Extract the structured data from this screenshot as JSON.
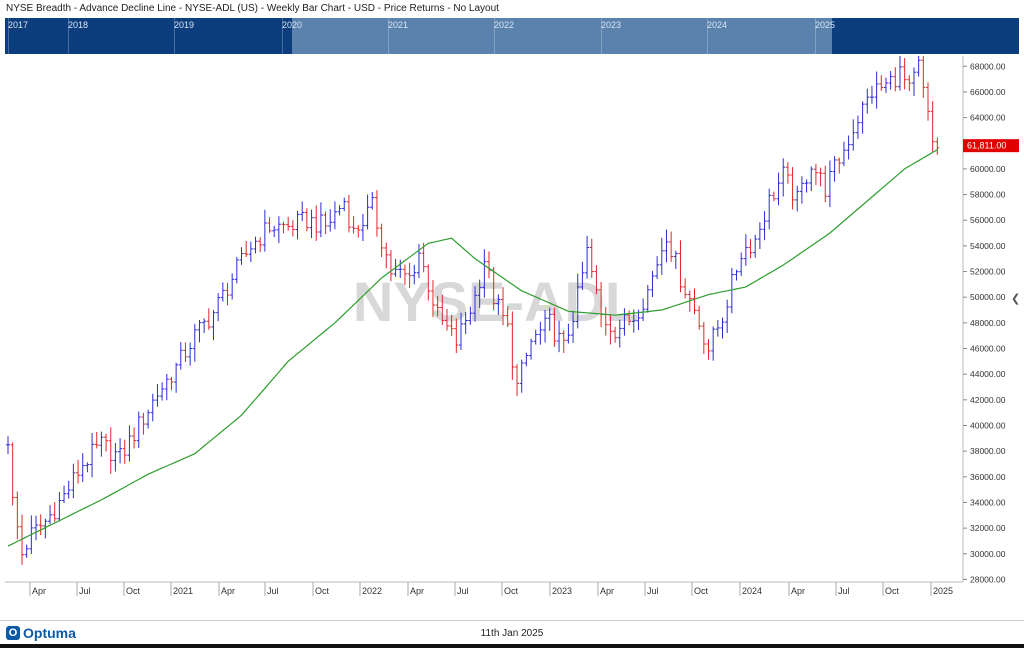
{
  "title": "NYSE Breadth - Advance Decline Line - NYSE-ADL (US) - Weekly Bar Chart - USD - Price Returns - No Layout",
  "watermark": "NYSE-ADL",
  "navigator": {
    "years": [
      "2017",
      "2018",
      "2019",
      "2020",
      "2021",
      "2022",
      "2023",
      "2024",
      "2025"
    ]
  },
  "footer": {
    "logo": "Optuma",
    "date": "11th Jan 2025"
  },
  "colors": {
    "up": "#2b2bd6",
    "down": "#e0262a",
    "ma": "#2e9e2e",
    "navigator": "#0c3d7d",
    "last_price_bg": "#e00000"
  },
  "chart_data": {
    "type": "ohlc-bar",
    "title": "NYSE-ADL",
    "x_tick_labels": [
      "Apr",
      "Jul",
      "Oct",
      "2021",
      "Apr",
      "Jul",
      "Oct",
      "2022",
      "Apr",
      "Jul",
      "Oct",
      "2023",
      "Apr",
      "Jul",
      "Oct",
      "2024",
      "Apr",
      "Jul",
      "Oct",
      "2025"
    ],
    "y_tick_labels": [
      "28000.00",
      "30000.00",
      "32000.00",
      "34000.00",
      "36000.00",
      "38000.00",
      "40000.00",
      "42000.00",
      "44000.00",
      "46000.00",
      "48000.00",
      "50000.00",
      "52000.00",
      "54000.00",
      "56000.00",
      "58000.00",
      "60000.00",
      "62000.00",
      "64000.00",
      "66000.00",
      "68000.00"
    ],
    "ylim": [
      27800,
      68800
    ],
    "last_price": "61,811.00",
    "close_anchors": [
      {
        "week": 0,
        "close": 39000
      },
      {
        "week": 1,
        "close": 34000
      },
      {
        "week": 3,
        "close": 30000
      },
      {
        "week": 5,
        "close": 31500
      },
      {
        "week": 8,
        "close": 32500
      },
      {
        "week": 12,
        "close": 34500
      },
      {
        "week": 16,
        "close": 37000
      },
      {
        "week": 20,
        "close": 38500
      },
      {
        "week": 24,
        "close": 37500
      },
      {
        "week": 28,
        "close": 40000
      },
      {
        "week": 32,
        "close": 42500
      },
      {
        "week": 36,
        "close": 44500
      },
      {
        "week": 40,
        "close": 47000
      },
      {
        "week": 44,
        "close": 48800
      },
      {
        "week": 48,
        "close": 51500
      },
      {
        "week": 52,
        "close": 54000
      },
      {
        "week": 56,
        "close": 55500
      },
      {
        "week": 60,
        "close": 55500
      },
      {
        "week": 64,
        "close": 56000
      },
      {
        "week": 68,
        "close": 55500
      },
      {
        "week": 72,
        "close": 57500
      },
      {
        "week": 74,
        "close": 55000
      },
      {
        "week": 78,
        "close": 57000
      },
      {
        "week": 82,
        "close": 52000
      },
      {
        "week": 86,
        "close": 51500
      },
      {
        "week": 88,
        "close": 53500
      },
      {
        "week": 92,
        "close": 48500
      },
      {
        "week": 96,
        "close": 46500
      },
      {
        "week": 100,
        "close": 50000
      },
      {
        "week": 102,
        "close": 53000
      },
      {
        "week": 104,
        "close": 50000
      },
      {
        "week": 107,
        "close": 47500
      },
      {
        "week": 109,
        "close": 43000
      },
      {
        "week": 112,
        "close": 46500
      },
      {
        "week": 116,
        "close": 48000
      },
      {
        "week": 119,
        "close": 46000
      },
      {
        "week": 122,
        "close": 50000
      },
      {
        "week": 124,
        "close": 53500
      },
      {
        "week": 127,
        "close": 48500
      },
      {
        "week": 130,
        "close": 47500
      },
      {
        "week": 134,
        "close": 48500
      },
      {
        "week": 137,
        "close": 50500
      },
      {
        "week": 141,
        "close": 55000
      },
      {
        "week": 144,
        "close": 51500
      },
      {
        "week": 147,
        "close": 49000
      },
      {
        "week": 150,
        "close": 46000
      },
      {
        "week": 153,
        "close": 48500
      },
      {
        "week": 157,
        "close": 53500
      },
      {
        "week": 160,
        "close": 54500
      },
      {
        "week": 163,
        "close": 57500
      },
      {
        "week": 166,
        "close": 59500
      },
      {
        "week": 169,
        "close": 57500
      },
      {
        "week": 172,
        "close": 60500
      },
      {
        "week": 175,
        "close": 58500
      },
      {
        "week": 179,
        "close": 61500
      },
      {
        "week": 182,
        "close": 64000
      },
      {
        "week": 185,
        "close": 66000
      },
      {
        "week": 188,
        "close": 66500
      },
      {
        "week": 191,
        "close": 67500
      },
      {
        "week": 193,
        "close": 66000
      },
      {
        "week": 195,
        "close": 68000
      },
      {
        "week": 197,
        "close": 64000
      },
      {
        "week": 198,
        "close": 62000
      },
      {
        "week": 199,
        "close": 61811
      }
    ],
    "ma_anchors": [
      {
        "week": 0,
        "value": 30600
      },
      {
        "week": 10,
        "value": 32400
      },
      {
        "week": 20,
        "value": 34200
      },
      {
        "week": 30,
        "value": 36200
      },
      {
        "week": 40,
        "value": 37800
      },
      {
        "week": 50,
        "value": 40800
      },
      {
        "week": 60,
        "value": 45000
      },
      {
        "week": 70,
        "value": 48000
      },
      {
        "week": 80,
        "value": 51500
      },
      {
        "week": 90,
        "value": 54200
      },
      {
        "week": 95,
        "value": 54600
      },
      {
        "week": 100,
        "value": 53000
      },
      {
        "week": 110,
        "value": 50500
      },
      {
        "week": 120,
        "value": 48900
      },
      {
        "week": 130,
        "value": 48600
      },
      {
        "week": 140,
        "value": 49000
      },
      {
        "week": 150,
        "value": 50200
      },
      {
        "week": 158,
        "value": 50800
      },
      {
        "week": 166,
        "value": 52500
      },
      {
        "week": 176,
        "value": 55000
      },
      {
        "week": 184,
        "value": 57500
      },
      {
        "week": 192,
        "value": 60000
      },
      {
        "week": 199,
        "value": 61500
      }
    ]
  }
}
